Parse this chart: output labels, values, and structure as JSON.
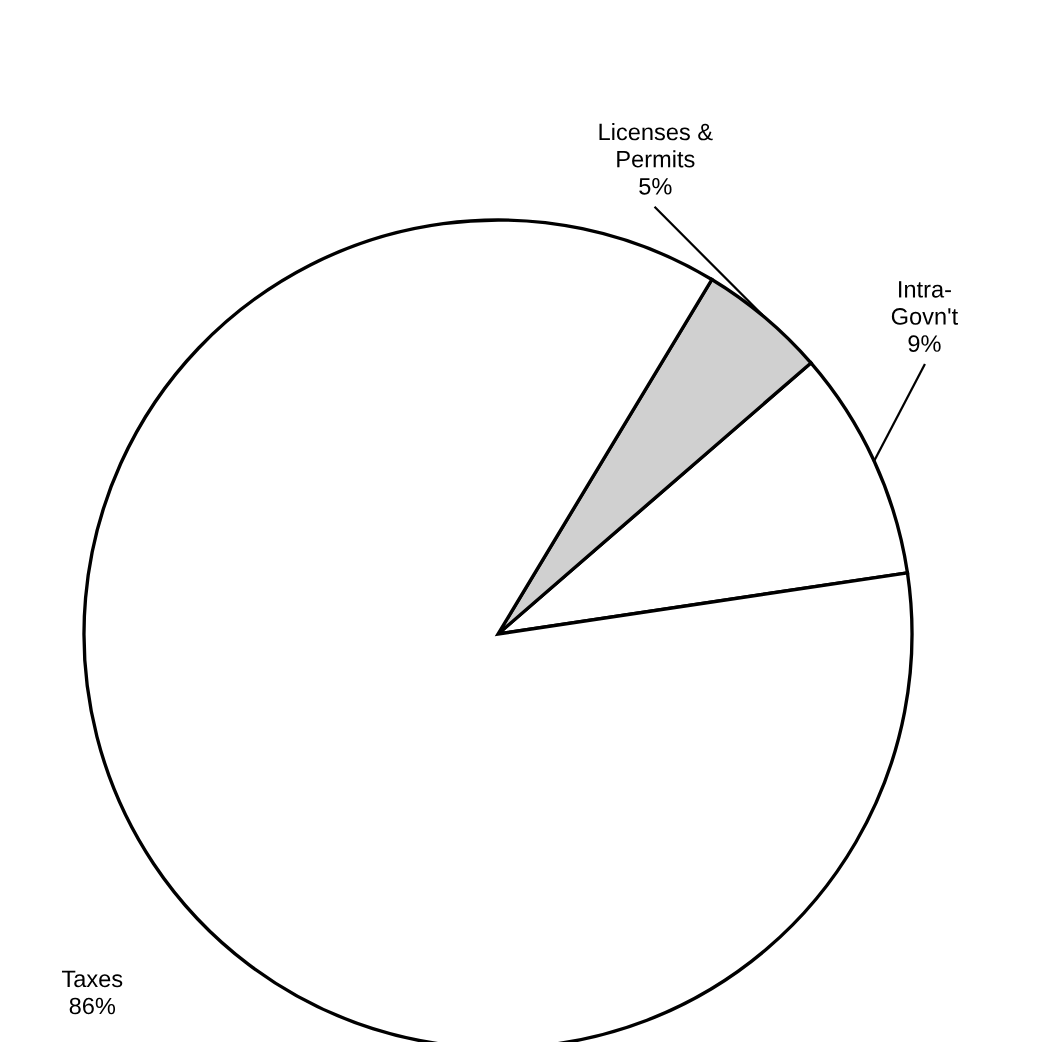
{
  "chart_data": {
    "type": "pie",
    "categories": [
      "Intra-\nGovn't",
      "Licenses &\nPermits",
      "Taxes"
    ],
    "values": [
      9,
      5,
      86
    ],
    "value_labels": [
      "9%",
      "5%",
      "86%"
    ],
    "colors": [
      "#ffffff",
      "#d0d0d0",
      "#ffffff"
    ]
  }
}
